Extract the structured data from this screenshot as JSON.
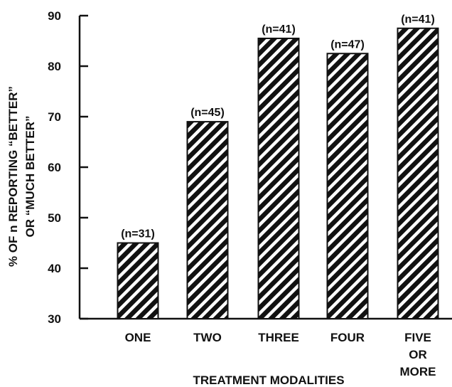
{
  "chart_data": {
    "type": "bar",
    "categories": [
      {
        "lines": [
          "ONE"
        ]
      },
      {
        "lines": [
          "TWO"
        ]
      },
      {
        "lines": [
          "THREE"
        ]
      },
      {
        "lines": [
          "FOUR"
        ]
      },
      {
        "lines": [
          "FIVE",
          "OR",
          "MORE"
        ]
      }
    ],
    "values": [
      45,
      69,
      85.5,
      82.5,
      87.5
    ],
    "data_labels": [
      "(n=31)",
      "(n=45)",
      "(n=41)",
      "(n=47)",
      "(n=41)"
    ],
    "ylim": [
      30,
      90
    ],
    "yticks": [
      30,
      40,
      50,
      60,
      70,
      80,
      90
    ],
    "ytick_labels": [
      "30",
      "40",
      "50",
      "60",
      "70",
      "80",
      "90"
    ],
    "xlabel": "TREATMENT MODALITIES",
    "ylabel_lines": [
      "% OF n REPORTING “BETTER”",
      "OR “MUCH BETTER”"
    ],
    "bar_fill": "hatched",
    "bar_color": "#111111",
    "grid": false
  }
}
